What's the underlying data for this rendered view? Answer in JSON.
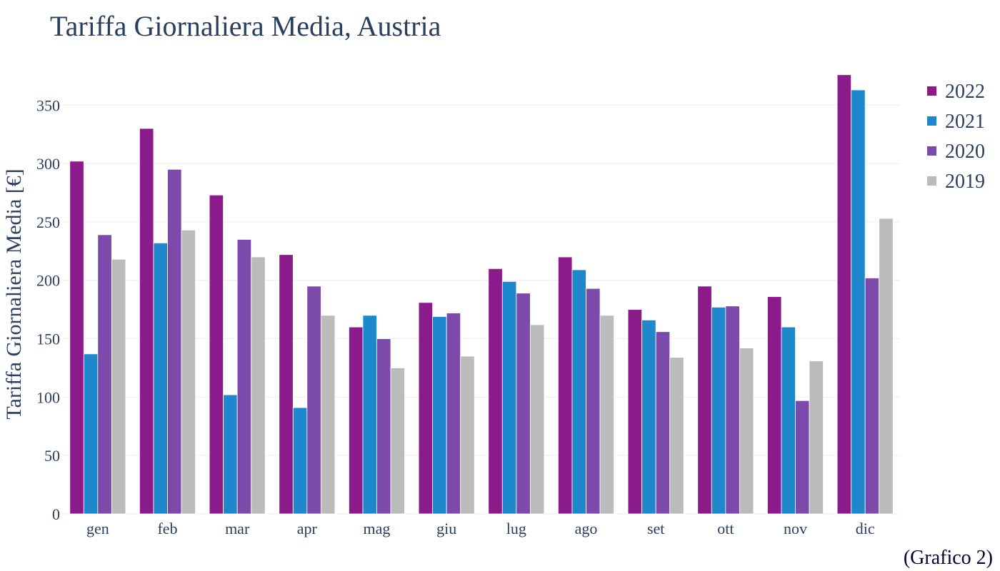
{
  "chart_data": {
    "type": "bar",
    "title": "Tariffa Giornaliera Media, Austria",
    "ylabel": "Tariffa Giornaliera Media [€]",
    "xlabel": "",
    "categories": [
      "gen",
      "feb",
      "mar",
      "apr",
      "mag",
      "giu",
      "lug",
      "ago",
      "set",
      "ott",
      "nov",
      "dic"
    ],
    "ylim": [
      0,
      385
    ],
    "yticks": [
      0,
      50,
      100,
      150,
      200,
      250,
      300,
      350
    ],
    "grid": true,
    "legend_position": "top-right",
    "series": [
      {
        "name": "2022",
        "color": "#8b1a8b",
        "values": [
          302,
          330,
          273,
          222,
          160,
          181,
          210,
          220,
          175,
          195,
          186,
          376
        ]
      },
      {
        "name": "2021",
        "color": "#1f88cc",
        "values": [
          137,
          232,
          102,
          91,
          170,
          169,
          199,
          209,
          166,
          177,
          160,
          363
        ]
      },
      {
        "name": "2020",
        "color": "#7b4aaa",
        "values": [
          239,
          295,
          235,
          195,
          150,
          172,
          189,
          193,
          156,
          178,
          97,
          202
        ]
      },
      {
        "name": "2019",
        "color": "#bbbbbb",
        "values": [
          218,
          243,
          220,
          170,
          125,
          135,
          162,
          170,
          134,
          142,
          131,
          253
        ]
      }
    ]
  },
  "caption": "(Grafico 2)"
}
